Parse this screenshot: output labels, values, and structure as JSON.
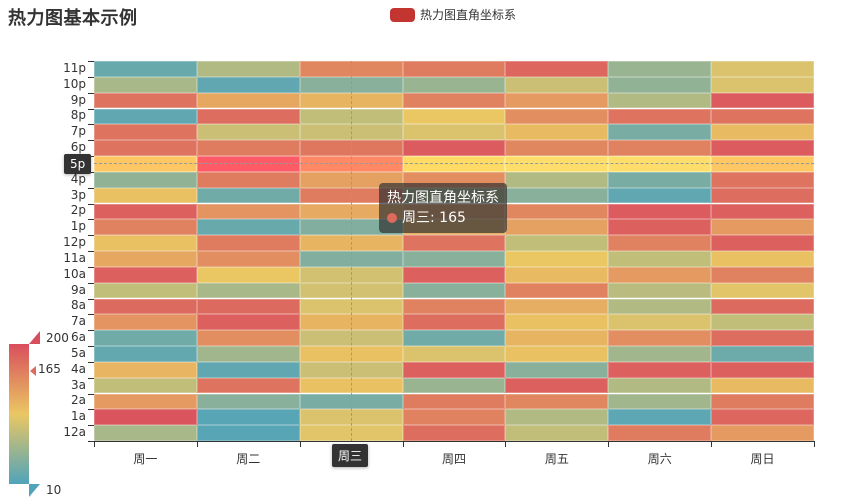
{
  "title": "热力图基本示例",
  "legend": {
    "label": "热力图直角坐标系",
    "color": "#c23531"
  },
  "tooltip": {
    "series": "热力图直角坐标系",
    "item": "周三: 165",
    "dot_color": "#dd6a5c"
  },
  "axis_pointer": {
    "x_label": "周三",
    "y_label": "5p"
  },
  "visual_map": {
    "max": "200",
    "min": "10",
    "current": "165",
    "colors": [
      "#50a3ba",
      "#eac763",
      "#d94e5d"
    ]
  },
  "chart_data": {
    "type": "heatmap",
    "title": "热力图基本示例",
    "legend": [
      "热力图直角坐标系"
    ],
    "xlabel": "",
    "ylabel": "",
    "x_categories": [
      "周一",
      "周二",
      "周三",
      "周四",
      "周五",
      "周六",
      "周日"
    ],
    "y_categories": [
      "12a",
      "1a",
      "2a",
      "3a",
      "4a",
      "5a",
      "6a",
      "7a",
      "8a",
      "9a",
      "10a",
      "11a",
      "12p",
      "1p",
      "2p",
      "3p",
      "4p",
      "5p",
      "6p",
      "7p",
      "8p",
      "9p",
      "10p",
      "11p"
    ],
    "value_range": [
      10,
      200
    ],
    "values": [
      [
        65,
        15,
        100,
        175,
        80,
        165,
        140
      ],
      [
        195,
        15,
        95,
        160,
        70,
        18,
        180
      ],
      [
        140,
        45,
        35,
        165,
        155,
        60,
        165
      ],
      [
        80,
        170,
        110,
        55,
        185,
        70,
        115
      ],
      [
        118,
        20,
        85,
        185,
        45,
        185,
        185
      ],
      [
        22,
        60,
        110,
        95,
        110,
        60,
        28
      ],
      [
        30,
        150,
        85,
        30,
        120,
        150,
        175
      ],
      [
        145,
        185,
        120,
        175,
        110,
        95,
        80
      ],
      [
        178,
        178,
        95,
        160,
        125,
        70,
        178
      ],
      [
        80,
        65,
        90,
        45,
        160,
        75,
        100
      ],
      [
        185,
        105,
        90,
        185,
        115,
        140,
        160
      ],
      [
        130,
        150,
        40,
        45,
        105,
        80,
        110
      ],
      [
        110,
        165,
        120,
        170,
        80,
        160,
        185
      ],
      [
        160,
        25,
        40,
        125,
        135,
        185,
        140
      ],
      [
        185,
        145,
        128,
        140,
        155,
        190,
        185
      ],
      [
        110,
        30,
        165,
        60,
        45,
        20,
        175
      ],
      [
        50,
        165,
        135,
        150,
        70,
        35,
        170
      ],
      [
        122,
        195,
        165,
        108,
        100,
        100,
        122
      ],
      [
        170,
        165,
        168,
        190,
        155,
        160,
        190
      ],
      [
        170,
        85,
        85,
        95,
        115,
        35,
        115
      ],
      [
        20,
        175,
        80,
        105,
        150,
        170,
        170
      ],
      [
        170,
        130,
        120,
        160,
        140,
        70,
        190
      ],
      [
        65,
        20,
        45,
        55,
        85,
        50,
        95
      ],
      [
        25,
        70,
        155,
        165,
        180,
        55,
        95
      ]
    ],
    "highlighted": {
      "x": "周三",
      "y": "5p",
      "value": 165
    },
    "visual_map": {
      "min": 10,
      "max": 200,
      "colors": [
        "#50a3ba",
        "#eac763",
        "#d94e5d"
      ]
    }
  }
}
